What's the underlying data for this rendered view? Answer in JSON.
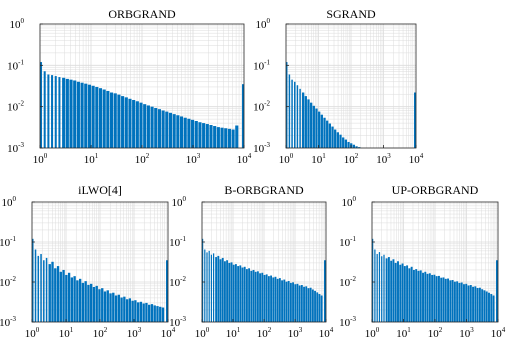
{
  "figure": {
    "bar_color": "#0072bd",
    "grid_color": "#dcdcdc",
    "axis_color": "#262626"
  },
  "chart_data": [
    {
      "type": "bar",
      "title": "ORBGRAND",
      "xscale": "log",
      "yscale": "log",
      "xlim": [
        1,
        10000
      ],
      "ylim": [
        0.001,
        1
      ],
      "xticks": [
        1,
        10,
        100,
        1000,
        10000
      ],
      "yticks": [
        0.001,
        0.01,
        0.1,
        1
      ],
      "xtick_labels": [
        [
          "10",
          "0"
        ],
        [
          "10",
          "1"
        ],
        [
          "10",
          "2"
        ],
        [
          "10",
          "3"
        ],
        [
          "10",
          "4"
        ]
      ],
      "ytick_labels": [
        [
          "10",
          "-3"
        ],
        [
          "10",
          "-2"
        ],
        [
          "10",
          "-1"
        ],
        [
          "10",
          "0"
        ]
      ],
      "grid": true,
      "series": [
        {
          "values": [
            0.12,
            0.072,
            0.06,
            0.058,
            0.055,
            0.052,
            0.05,
            0.047,
            0.045,
            0.043,
            0.04,
            0.038,
            0.036,
            0.034,
            0.032,
            0.03,
            0.028,
            0.026,
            0.024,
            0.022,
            0.021,
            0.0195,
            0.018,
            0.0168,
            0.0155,
            0.0145,
            0.0135,
            0.0125,
            0.0115,
            0.0107,
            0.01,
            0.0093,
            0.0087,
            0.0081,
            0.0076,
            0.0071,
            0.0066,
            0.0062,
            0.0058,
            0.0054,
            0.0051,
            0.0048,
            0.0045,
            0.0042,
            0.004,
            0.0038,
            0.0036,
            0.0034,
            0.0032,
            0.0031,
            0.003,
            0.0029,
            0.0028,
            0.0035
          ]
        }
      ],
      "tail_bar": 0.035
    },
    {
      "type": "bar",
      "title": "SGRAND",
      "xscale": "log",
      "yscale": "log",
      "xlim": [
        1,
        10000
      ],
      "ylim": [
        0.001,
        1
      ],
      "xticks": [
        1,
        10,
        100,
        1000,
        10000
      ],
      "yticks": [
        0.001,
        0.01,
        0.1,
        1
      ],
      "xtick_labels": [
        [
          "10",
          "0"
        ],
        [
          "10",
          "1"
        ],
        [
          "10",
          "2"
        ],
        [
          "10",
          "3"
        ],
        [
          "10",
          "4"
        ]
      ],
      "ytick_labels": [
        [
          "10",
          "-3"
        ],
        [
          "10",
          "-2"
        ],
        [
          "10",
          "-1"
        ],
        [
          "10",
          "0"
        ]
      ],
      "grid": true,
      "series": [
        {
          "values": [
            0.12,
            0.06,
            0.045,
            0.04,
            0.033,
            0.027,
            0.022,
            0.018,
            0.015,
            0.0125,
            0.0105,
            0.009,
            0.0076,
            0.0064,
            0.0054,
            0.0046,
            0.0039,
            0.0033,
            0.0028,
            0.0024,
            0.0021,
            0.0018,
            0.0016,
            0.0014,
            0.0013,
            0.0012,
            0.0011,
            0.00105
          ]
        }
      ],
      "tail_bar": 0.022
    },
    {
      "type": "bar",
      "title": "iLWO[4]",
      "xscale": "log",
      "yscale": "log",
      "xlim": [
        1,
        10000
      ],
      "ylim": [
        0.001,
        1
      ],
      "xticks": [
        1,
        10,
        100,
        1000,
        10000
      ],
      "yticks": [
        0.001,
        0.01,
        0.1,
        1
      ],
      "xtick_labels": [
        [
          "10",
          "0"
        ],
        [
          "10",
          "1"
        ],
        [
          "10",
          "2"
        ],
        [
          "10",
          "3"
        ],
        [
          "10",
          "4"
        ]
      ],
      "ytick_labels": [
        [
          "10",
          "-3"
        ],
        [
          "10",
          "-2"
        ],
        [
          "10",
          "-1"
        ],
        [
          "10",
          "0"
        ]
      ],
      "grid": true,
      "series": [
        {
          "values": [
            0.12,
            0.065,
            0.045,
            0.05,
            0.035,
            0.04,
            0.028,
            0.032,
            0.022,
            0.025,
            0.018,
            0.02,
            0.015,
            0.017,
            0.013,
            0.014,
            0.011,
            0.012,
            0.0095,
            0.0105,
            0.0085,
            0.009,
            0.0075,
            0.008,
            0.0066,
            0.007,
            0.0058,
            0.0062,
            0.0052,
            0.0054,
            0.0046,
            0.0048,
            0.0041,
            0.0043,
            0.0037,
            0.0039,
            0.0034,
            0.0035,
            0.0031,
            0.0032,
            0.0029,
            0.003,
            0.0027,
            0.0028,
            0.0026,
            0.0025,
            0.0024,
            0.0023
          ]
        }
      ],
      "tail_bar": 0.035
    },
    {
      "type": "bar",
      "title": "B-ORBGRAND",
      "xscale": "log",
      "yscale": "log",
      "xlim": [
        1,
        10000
      ],
      "ylim": [
        0.001,
        1
      ],
      "xticks": [
        1,
        10,
        100,
        1000,
        10000
      ],
      "yticks": [
        0.001,
        0.01,
        0.1,
        1
      ],
      "xtick_labels": [
        [
          "10",
          "0"
        ],
        [
          "10",
          "1"
        ],
        [
          "10",
          "2"
        ],
        [
          "10",
          "3"
        ],
        [
          "10",
          "4"
        ]
      ],
      "ytick_labels": [
        [
          "10",
          "-3"
        ],
        [
          "10",
          "-2"
        ],
        [
          "10",
          "-1"
        ],
        [
          "10",
          "0"
        ]
      ],
      "grid": true,
      "series": [
        {
          "values": [
            0.12,
            0.065,
            0.055,
            0.06,
            0.048,
            0.052,
            0.042,
            0.045,
            0.037,
            0.04,
            0.033,
            0.035,
            0.03,
            0.031,
            0.027,
            0.028,
            0.025,
            0.026,
            0.023,
            0.024,
            0.021,
            0.022,
            0.019,
            0.02,
            0.018,
            0.0185,
            0.0165,
            0.017,
            0.015,
            0.0155,
            0.014,
            0.0145,
            0.013,
            0.0135,
            0.012,
            0.0125,
            0.011,
            0.0115,
            0.0102,
            0.0106,
            0.0095,
            0.0098,
            0.0088,
            0.009,
            0.0082,
            0.0084,
            0.0076,
            0.0078,
            0.007,
            0.0072,
            0.0065,
            0.006,
            0.0055,
            0.005,
            0.0046
          ]
        }
      ],
      "tail_bar": 0.035
    },
    {
      "type": "bar",
      "title": "UP-ORBGRAND",
      "xscale": "log",
      "yscale": "log",
      "xlim": [
        1,
        10000
      ],
      "ylim": [
        0.001,
        1
      ],
      "xticks": [
        1,
        10,
        100,
        1000,
        10000
      ],
      "yticks": [
        0.001,
        0.01,
        0.1,
        1
      ],
      "xtick_labels": [
        [
          "10",
          "0"
        ],
        [
          "10",
          "1"
        ],
        [
          "10",
          "2"
        ],
        [
          "10",
          "3"
        ],
        [
          "10",
          "4"
        ]
      ],
      "ytick_labels": [
        [
          "10",
          "-3"
        ],
        [
          "10",
          "-2"
        ],
        [
          "10",
          "-1"
        ],
        [
          "10",
          "0"
        ]
      ],
      "grid": true,
      "series": [
        {
          "values": [
            0.12,
            0.065,
            0.05,
            0.056,
            0.044,
            0.048,
            0.039,
            0.042,
            0.034,
            0.037,
            0.03,
            0.033,
            0.027,
            0.029,
            0.025,
            0.026,
            0.022,
            0.024,
            0.02,
            0.021,
            0.019,
            0.0195,
            0.017,
            0.018,
            0.016,
            0.0165,
            0.015,
            0.0152,
            0.014,
            0.0142,
            0.0128,
            0.013,
            0.012,
            0.0122,
            0.011,
            0.0112,
            0.0102,
            0.0104,
            0.0095,
            0.0097,
            0.0088,
            0.009,
            0.0082,
            0.0084,
            0.0076,
            0.0078,
            0.0071,
            0.0072,
            0.0066,
            0.0062,
            0.0058,
            0.0054,
            0.005,
            0.0046
          ]
        }
      ],
      "tail_bar": 0.035
    }
  ]
}
